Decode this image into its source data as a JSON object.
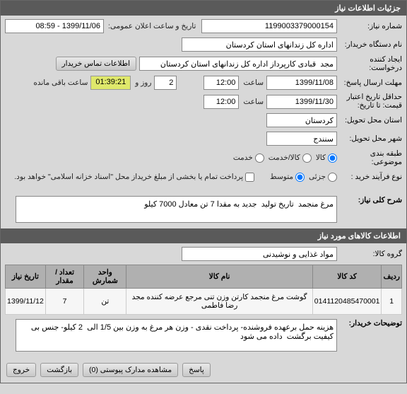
{
  "headers": {
    "main": "جزئیات اطلاعات نیاز",
    "goods": "اطلاعات کالاهای مورد نیاز"
  },
  "labels": {
    "req_no": "شماره نیاز:",
    "pub_datetime": "تاریخ و ساعت اعلان عمومی:",
    "buyer_org": "نام دستگاه خریدار:",
    "creator": "ایجاد کننده درخواست:",
    "contact_btn": "اطلاعات تماس خریدار",
    "resp_until": "مهلت ارسال پاسخ:",
    "hour": "ساعت",
    "day_and": "روز و",
    "remaining": "ساعت باقی مانده",
    "credit_until": "حداقل تاریخ اعتبار قیمت: تا تاریخ:",
    "delivery_province": "استان محل تحویل:",
    "delivery_city": "شهر محل تحویل:",
    "budget_class": "طبقه بندی موضوعی:",
    "kala": "کالا",
    "kala_service": "کالا/خدمت",
    "service": "خدمت",
    "buy_process": "نوع فرآیند خرید :",
    "small": "جزئی",
    "medium": "متوسط",
    "partial_pay": "پرداخت تمام یا بخشی از مبلغ خریداز محل \"اسناد خزانه اسلامی\" خواهد بود.",
    "gen_title": "شرح کلی نیاز:",
    "goods_group": "گروه کالا:",
    "buyer_notes": "توضیحات خریدار:",
    "back": "بازگشت",
    "attachments": "مشاهده مدارک پیوستی (0)",
    "reply": "پاسخ",
    "exit": "خروج"
  },
  "values": {
    "req_no": "1199003379000154",
    "pub_datetime": "1399/11/06 - 08:59",
    "buyer_org": "اداره کل زندانهای استان کردستان",
    "creator": "مجد  قبادی کارپرداز اداره کل زندانهای استان کردستان",
    "resp_date": "1399/11/08",
    "resp_time": "12:00",
    "days_left": "2",
    "countdown": "01:39:21",
    "credit_date": "1399/11/30",
    "credit_time": "12:00",
    "province": "کردستان",
    "city": "سنندج",
    "gen_title": "مرغ منجمد  تاریخ تولید  جدید به مقدا 7 تن معادل 7000 کیلو",
    "goods_group": "مواد غذایی و نوشیدنی",
    "buyer_notes": "هزینه حمل برعهده فروشنده- پرداخت نقدی - وزن هر مرغ به وزن بین 1/5 الی  2 کیلو- جنس بی کیفیت برگشت  داده می شود"
  },
  "table": {
    "cols": [
      "ردیف",
      "کد کالا",
      "نام کالا",
      "واحد شمارش",
      "تعداد / مقدار",
      "تاریخ نیاز"
    ],
    "rows": [
      [
        "1",
        "0141120485470001",
        "گوشت مرغ منجمد کارتن وزن تنی مرجع عرضه کننده مجد رضا فاطمی",
        "تن",
        "7",
        "1399/11/12"
      ]
    ]
  }
}
